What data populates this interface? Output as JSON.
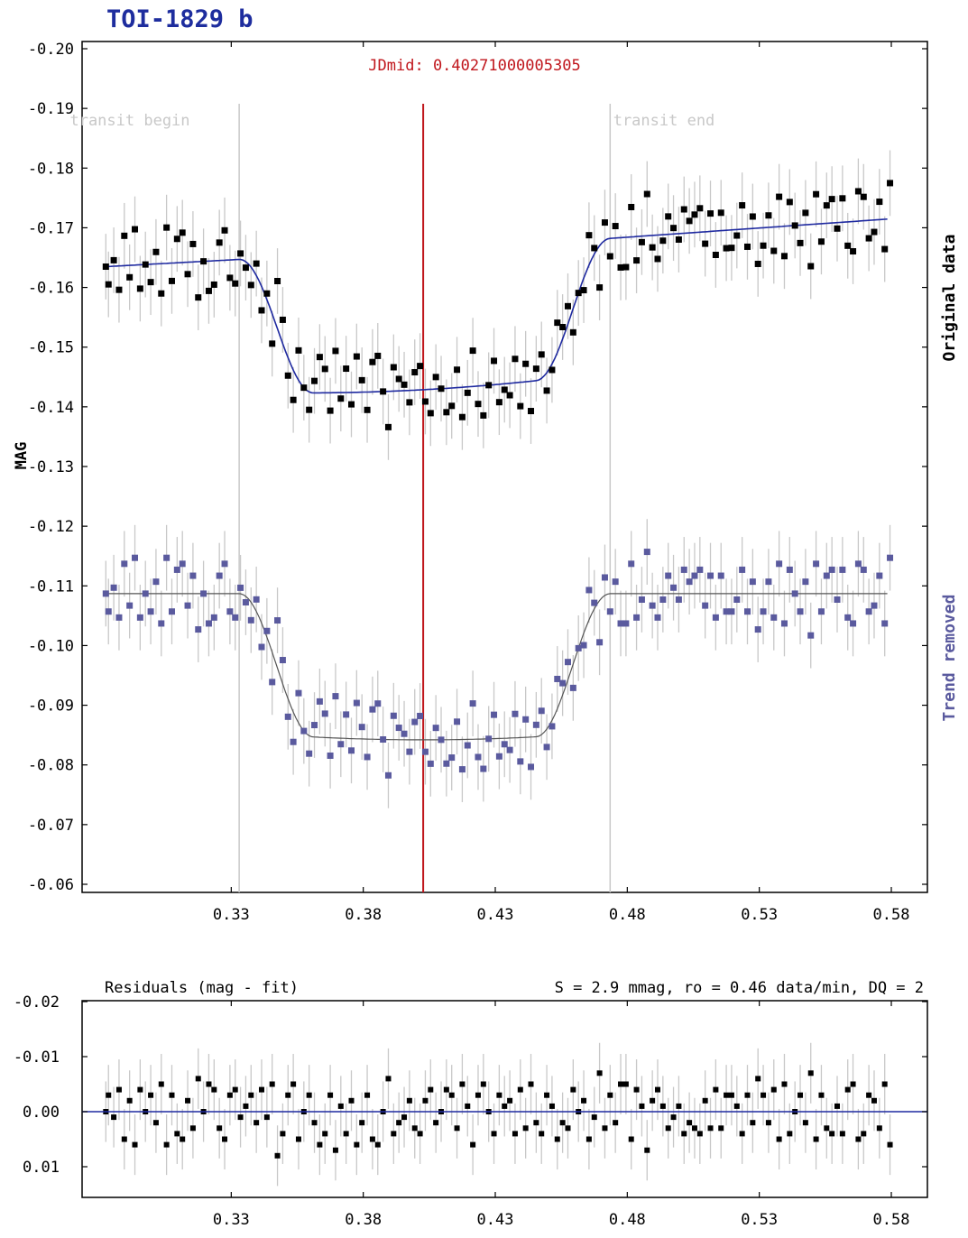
{
  "title": "TOI-1829 b",
  "colors": {
    "title": "#1e2d9e",
    "original_points": "#000000",
    "detrended_points": "#5a5a9e",
    "main_fit": "#1f2aa0",
    "detrended_fit": "#555555",
    "jdmid_line": "#c0161c",
    "transit_lines": "#c8c8c8",
    "errorbars": "#c8c8c8",
    "residual_zero": "#1f2aa0"
  },
  "chart_data": [
    {
      "type": "scatter",
      "ylabel": "MAG",
      "ylim": [
        -0.2,
        -0.06
      ],
      "xlim": [
        0.28,
        0.59
      ],
      "y_inverted": true,
      "x_ticks": [
        "0.33",
        "0.38",
        "0.43",
        "0.48",
        "0.53",
        "0.58"
      ],
      "y_ticks": [
        "-0.20",
        "-0.19",
        "-0.18",
        "-0.17",
        "-0.16",
        "-0.15",
        "-0.14",
        "-0.13",
        "-0.12",
        "-0.11",
        "-0.10",
        "-0.09",
        "-0.08",
        "-0.07",
        "-0.06"
      ],
      "annotations": {
        "jdmid_label": "JDmid: 0.40271000005305",
        "jdmid": 0.4027,
        "transit_begin_label": "transit begin",
        "transit_begin": 0.333,
        "transit_end_label": "transit end",
        "transit_end": 0.4735
      },
      "series": [
        {
          "name": "Original data",
          "baseline_start": -0.1635,
          "baseline_end": -0.1715,
          "depth": 0.0235,
          "residuals_ref": true
        },
        {
          "name": "Trend removed",
          "baseline": -0.1087,
          "depth": 0.0245,
          "residuals_ref": true
        }
      ],
      "x": [
        0.2825,
        0.2835,
        0.2855,
        0.2875,
        0.2895,
        0.2915,
        0.2935,
        0.2955,
        0.2975,
        0.2995,
        0.3015,
        0.3035,
        0.3055,
        0.3075,
        0.3095,
        0.3115,
        0.3135,
        0.3155,
        0.3175,
        0.3195,
        0.3215,
        0.3235,
        0.3255,
        0.3275,
        0.3295,
        0.3315,
        0.3335,
        0.3355,
        0.3375,
        0.3395,
        0.3415,
        0.3435,
        0.3455,
        0.3475,
        0.3495,
        0.3515,
        0.3535,
        0.3555,
        0.3575,
        0.3595,
        0.3615,
        0.3635,
        0.3655,
        0.3675,
        0.3695,
        0.3715,
        0.3735,
        0.3755,
        0.3775,
        0.3795,
        0.3815,
        0.3835,
        0.3855,
        0.3875,
        0.3895,
        0.3915,
        0.3935,
        0.3955,
        0.3975,
        0.3995,
        0.4015,
        0.4035,
        0.4055,
        0.4075,
        0.4095,
        0.4115,
        0.4135,
        0.4155,
        0.4175,
        0.4195,
        0.4215,
        0.4235,
        0.4255,
        0.4275,
        0.4295,
        0.4315,
        0.4335,
        0.4355,
        0.4375,
        0.4395,
        0.4415,
        0.4435,
        0.4455,
        0.4475,
        0.4495,
        0.4515,
        0.4535,
        0.4555,
        0.4575,
        0.4595,
        0.4615,
        0.4635,
        0.4655,
        0.4675,
        0.4695,
        0.4715,
        0.4735,
        0.4755,
        0.4775,
        0.4795,
        0.4815,
        0.4835,
        0.4855,
        0.4875,
        0.4895,
        0.4915,
        0.4935,
        0.4955,
        0.4975,
        0.4995,
        0.5015,
        0.5035,
        0.5055,
        0.5075,
        0.5095,
        0.5115,
        0.5135,
        0.5155,
        0.5175,
        0.5195,
        0.5215,
        0.5235,
        0.5255,
        0.5275,
        0.5295,
        0.5315,
        0.5335,
        0.5355,
        0.5375,
        0.5395,
        0.5415,
        0.5435,
        0.5455,
        0.5475,
        0.5495,
        0.5515,
        0.5535,
        0.5555,
        0.5575,
        0.5595,
        0.5615,
        0.5635,
        0.5655,
        0.5675,
        0.5695,
        0.5715,
        0.5735,
        0.5755,
        0.5775,
        0.5795
      ],
      "residuals": [
        0.0,
        -0.003,
        0.001,
        -0.004,
        0.005,
        -0.002,
        0.006,
        -0.004,
        0.0,
        -0.003,
        0.002,
        -0.005,
        0.006,
        -0.003,
        0.004,
        0.005,
        -0.002,
        0.003,
        -0.006,
        0.0,
        -0.005,
        -0.004,
        0.003,
        0.005,
        -0.003,
        -0.004,
        0.001,
        -0.001,
        -0.003,
        0.002,
        -0.004,
        0.001,
        -0.005,
        0.008,
        0.004,
        -0.003,
        -0.005,
        0.005,
        0.0,
        -0.003,
        0.002,
        0.006,
        0.004,
        -0.003,
        0.007,
        -0.001,
        0.004,
        -0.002,
        0.006,
        0.002,
        -0.003,
        0.005,
        0.006,
        0.0,
        -0.006,
        0.004,
        0.002,
        0.001,
        -0.002,
        0.003,
        0.004,
        -0.002,
        -0.004,
        0.002,
        0.0,
        -0.004,
        -0.003,
        0.003,
        -0.005,
        -0.001,
        0.006,
        -0.003,
        -0.005,
        0.0,
        0.004,
        -0.003,
        -0.001,
        -0.002,
        0.004,
        -0.004,
        0.003,
        -0.005,
        0.002,
        0.004,
        -0.003,
        -0.001,
        0.005,
        0.002,
        0.003,
        -0.004,
        0.0,
        -0.002,
        0.005,
        0.001,
        -0.007,
        0.003,
        -0.003,
        0.002,
        -0.005,
        -0.005,
        0.005,
        -0.004,
        -0.001,
        0.007,
        -0.002,
        -0.004,
        -0.001,
        0.003,
        0.001,
        -0.001,
        0.004,
        0.002,
        0.003,
        0.004,
        -0.002,
        0.003,
        -0.004,
        0.003,
        -0.003,
        -0.003,
        -0.001,
        0.004,
        -0.003,
        0.002,
        -0.006,
        -0.003,
        0.002,
        -0.004,
        0.005,
        -0.005,
        0.004,
        0.0,
        -0.003,
        0.002,
        -0.007,
        0.005,
        -0.003,
        0.003,
        0.004,
        -0.001,
        0.004,
        -0.004,
        -0.005,
        0.005,
        0.004,
        -0.003,
        -0.002,
        0.003,
        -0.005,
        0.006
      ]
    },
    {
      "type": "scatter",
      "title": "Residuals (mag - fit)",
      "stats_label": "S = 2.9 mmag, ro = 0.46 data/min, DQ = 2",
      "ylim": [
        -0.02,
        0.015
      ],
      "y_inverted": true,
      "x_ticks": [
        "0.33",
        "0.38",
        "0.43",
        "0.48",
        "0.53",
        "0.58"
      ],
      "y_ticks": [
        "-0.02",
        "-0.01",
        "0.00",
        "0.01"
      ]
    }
  ]
}
